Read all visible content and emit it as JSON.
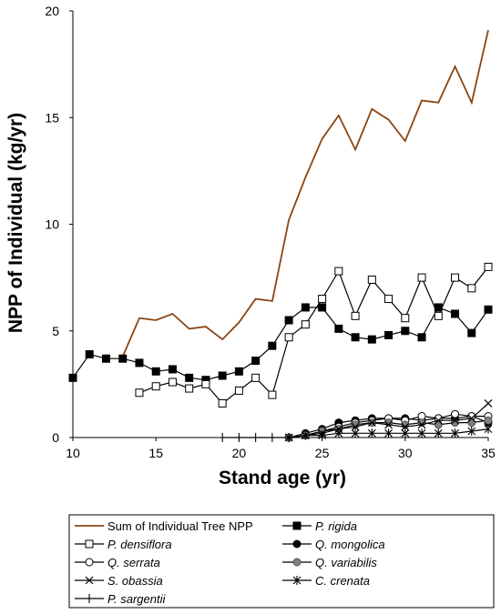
{
  "chart_data": {
    "type": "line",
    "xlabel": "Stand age (yr)",
    "ylabel": "NPP of Individual (kg/yr)",
    "xlim": [
      10,
      35
    ],
    "ylim": [
      0,
      20
    ],
    "xticks": [
      10,
      15,
      20,
      25,
      30,
      35
    ],
    "yticks": [
      0,
      5,
      10,
      15,
      20
    ],
    "grid": false,
    "legend_position": "bottom",
    "series": [
      {
        "name": "Sum of Individual Tree NPP",
        "legend_label": "Sum of Individual Tree NPP",
        "italic": false,
        "color": "#8B4513",
        "marker": "none",
        "x": [
          13,
          14,
          15,
          16,
          17,
          18,
          19,
          20,
          21,
          22,
          23,
          24,
          25,
          26,
          27,
          28,
          29,
          30,
          31,
          32,
          33,
          34,
          35
        ],
        "values": [
          3.8,
          5.6,
          5.5,
          5.8,
          5.1,
          5.2,
          4.6,
          5.4,
          6.5,
          6.4,
          10.2,
          12.2,
          14.0,
          15.1,
          13.5,
          15.4,
          14.9,
          13.9,
          15.8,
          15.7,
          17.4,
          15.7,
          19.1
        ]
      },
      {
        "name": "P. rigida",
        "legend_label": "P. rigida",
        "italic": true,
        "color": "#000000",
        "marker": "filled-square",
        "x": [
          10,
          11,
          12,
          13,
          14,
          15,
          16,
          17,
          18,
          19,
          20,
          21,
          22,
          23,
          24,
          25,
          26,
          27,
          28,
          29,
          30,
          31,
          32,
          33,
          34,
          35
        ],
        "values": [
          2.8,
          3.9,
          3.7,
          3.7,
          3.5,
          3.1,
          3.2,
          2.8,
          2.7,
          2.9,
          3.1,
          3.6,
          4.3,
          5.5,
          6.1,
          6.1,
          5.1,
          4.7,
          4.6,
          4.8,
          5.0,
          4.7,
          6.1,
          5.8,
          4.9,
          6.0
        ]
      },
      {
        "name": "P. densiflora",
        "legend_label": "P. densiflora",
        "italic": true,
        "color": "#000000",
        "marker": "open-square",
        "x": [
          14,
          15,
          16,
          17,
          18,
          19,
          20,
          21,
          22,
          23,
          24,
          25,
          26,
          27,
          28,
          29,
          30,
          31,
          32,
          33,
          34,
          35
        ],
        "values": [
          2.1,
          2.4,
          2.6,
          2.3,
          2.5,
          1.6,
          2.2,
          2.8,
          2.0,
          4.7,
          5.3,
          6.5,
          7.8,
          5.7,
          7.4,
          6.5,
          5.6,
          7.5,
          5.7,
          7.5,
          7.0,
          8.0
        ]
      },
      {
        "name": "Q. mongolica",
        "legend_label": "Q. mongolica",
        "italic": true,
        "color": "#000000",
        "marker": "filled-circle",
        "x": [
          23,
          24,
          25,
          26,
          27,
          28,
          29,
          30,
          31,
          32,
          33,
          34,
          35
        ],
        "values": [
          0.0,
          0.2,
          0.4,
          0.7,
          0.8,
          0.9,
          0.9,
          0.9,
          0.8,
          0.9,
          0.9,
          1.0,
          0.7
        ]
      },
      {
        "name": "Q. serrata",
        "legend_label": "Q. serrata",
        "italic": true,
        "color": "#000000",
        "marker": "open-circle",
        "x": [
          23,
          24,
          25,
          26,
          27,
          28,
          29,
          30,
          31,
          32,
          33,
          34,
          35
        ],
        "values": [
          0.0,
          0.1,
          0.3,
          0.5,
          0.7,
          0.8,
          0.9,
          0.8,
          1.0,
          0.9,
          1.1,
          1.0,
          1.0
        ]
      },
      {
        "name": "Q. variabilis",
        "legend_label": "Q. variabilis",
        "italic": true,
        "color": "#000000",
        "marker": "gray-circle",
        "x": [
          23,
          24,
          25,
          26,
          27,
          28,
          29,
          30,
          31,
          32,
          33,
          34,
          35
        ],
        "values": [
          0.0,
          0.1,
          0.3,
          0.4,
          0.6,
          0.7,
          0.7,
          0.6,
          0.7,
          0.6,
          0.7,
          0.7,
          0.8
        ]
      },
      {
        "name": "S. obassia",
        "legend_label": "S. obassia",
        "italic": true,
        "color": "#000000",
        "marker": "x",
        "x": [
          23,
          24,
          25,
          26,
          27,
          28,
          29,
          30,
          31,
          32,
          33,
          34,
          35
        ],
        "values": [
          0.0,
          0.1,
          0.2,
          0.4,
          0.5,
          0.7,
          0.6,
          0.5,
          0.6,
          0.8,
          0.8,
          0.9,
          1.6
        ]
      },
      {
        "name": "C. crenata",
        "legend_label": "C. crenata",
        "italic": true,
        "color": "#000000",
        "marker": "asterisk",
        "x": [
          23,
          24,
          25,
          26,
          27,
          28,
          29,
          30,
          31,
          32,
          33,
          34,
          35
        ],
        "values": [
          0.0,
          0.1,
          0.1,
          0.2,
          0.2,
          0.2,
          0.2,
          0.2,
          0.2,
          0.2,
          0.2,
          0.3,
          0.4
        ]
      },
      {
        "name": "P. sargentii",
        "legend_label": "P. sargentii",
        "italic": true,
        "color": "#000000",
        "marker": "plus",
        "x": [
          19,
          20,
          21,
          22,
          23
        ],
        "values": [
          0.0,
          0.0,
          0.0,
          0.0,
          0.0
        ]
      }
    ]
  }
}
